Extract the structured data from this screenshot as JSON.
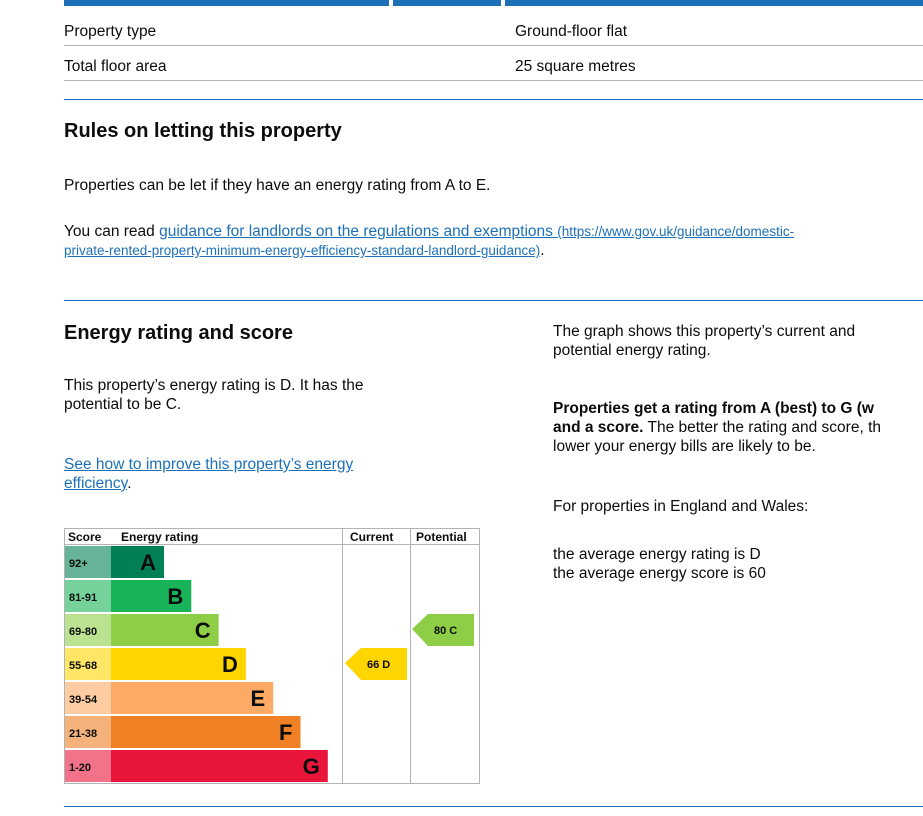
{
  "summary_table": {
    "rows": [
      {
        "label": "Property type",
        "value": "Ground-floor flat"
      },
      {
        "label": "Total floor area",
        "value": "25 square metres"
      }
    ]
  },
  "letting_rules": {
    "heading": "Rules on letting this property",
    "intro": "Properties can be let if they have an energy rating from A to E.",
    "guidance_prefix": "You can read ",
    "guidance_link_text": "guidance for landlords on the regulations and exemptions",
    "guidance_url_line1": "(https://www.gov.uk/guidance/domestic-",
    "guidance_url_line2": "private-rented-property-minimum-energy-efficiency-standard-landlord-guidance)"
  },
  "energy": {
    "heading": "Energy rating and score",
    "statement_line1": "This property’s energy rating is D. It has the",
    "statement_line2": "potential to be C.",
    "improve_link_line1": "See how to improve this property’s energy",
    "improve_link_line2": "efficiency",
    "graph_note_line1": "The graph shows this property’s current and",
    "graph_note_line2": "potential energy rating.",
    "rating_note_bold_line1": "Properties get a rating from A (best) to G (w",
    "rating_note_bold_line2": "and a score.",
    "rating_note_rest_line2": " The better the rating and score, th",
    "rating_note_line3": "lower your energy bills are likely to be.",
    "region_note": "For properties in England and Wales:",
    "average_rating": "the average energy rating is D",
    "average_score": "the average energy score is 60"
  },
  "chart_data": {
    "type": "bar",
    "headers": {
      "score": "Score",
      "rating": "Energy rating",
      "current": "Current",
      "potential": "Potential"
    },
    "bands": [
      {
        "range": "92+",
        "letter": "A",
        "color": "#008054"
      },
      {
        "range": "81-91",
        "letter": "B",
        "color": "#19b459"
      },
      {
        "range": "69-80",
        "letter": "C",
        "color": "#8dce46"
      },
      {
        "range": "55-68",
        "letter": "D",
        "color": "#ffd500"
      },
      {
        "range": "39-54",
        "letter": "E",
        "color": "#fcaa65"
      },
      {
        "range": "21-38",
        "letter": "F",
        "color": "#ef8023"
      },
      {
        "range": "1-20",
        "letter": "G",
        "color": "#e9153b"
      }
    ],
    "current": {
      "score": 66,
      "letter": "D",
      "label": "66  D"
    },
    "potential": {
      "score": 80,
      "letter": "C",
      "label": "80  C"
    }
  }
}
